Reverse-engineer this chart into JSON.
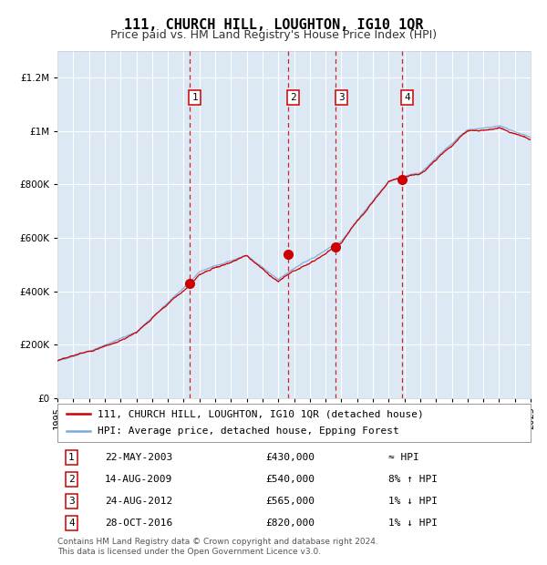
{
  "title": "111, CHURCH HILL, LOUGHTON, IG10 1QR",
  "subtitle": "Price paid vs. HM Land Registry's House Price Index (HPI)",
  "ylim": [
    0,
    1300000
  ],
  "yticks": [
    0,
    200000,
    400000,
    600000,
    800000,
    1000000,
    1200000
  ],
  "ytick_labels": [
    "£0",
    "£200K",
    "£400K",
    "£600K",
    "£800K",
    "£1M",
    "£1.2M"
  ],
  "x_start_year": 1995,
  "x_end_year": 2025,
  "background_color": "#ffffff",
  "plot_bg_color": "#dce9f5",
  "grid_color": "#ffffff",
  "hpi_line_color": "#7aaadd",
  "price_line_color": "#cc0000",
  "marker_color": "#cc0000",
  "sale_dates_decimal": [
    2003.38,
    2009.62,
    2012.65,
    2016.83
  ],
  "sale_prices": [
    430000,
    540000,
    565000,
    820000
  ],
  "sale_labels": [
    "1",
    "2",
    "3",
    "4"
  ],
  "dashed_line_color": "#cc0000",
  "legend_price_label": "111, CHURCH HILL, LOUGHTON, IG10 1QR (detached house)",
  "legend_hpi_label": "HPI: Average price, detached house, Epping Forest",
  "table_rows": [
    {
      "num": "1",
      "date": "22-MAY-2003",
      "price": "£430,000",
      "rel": "≈ HPI"
    },
    {
      "num": "2",
      "date": "14-AUG-2009",
      "price": "£540,000",
      "rel": "8% ↑ HPI"
    },
    {
      "num": "3",
      "date": "24-AUG-2012",
      "price": "£565,000",
      "rel": "1% ↓ HPI"
    },
    {
      "num": "4",
      "date": "28-OCT-2016",
      "price": "£820,000",
      "rel": "1% ↓ HPI"
    }
  ],
  "footer_text": "Contains HM Land Registry data © Crown copyright and database right 2024.\nThis data is licensed under the Open Government Licence v3.0.",
  "title_fontsize": 11,
  "subtitle_fontsize": 9,
  "tick_fontsize": 7.5,
  "legend_fontsize": 8,
  "table_fontsize": 8,
  "footer_fontsize": 6.5
}
